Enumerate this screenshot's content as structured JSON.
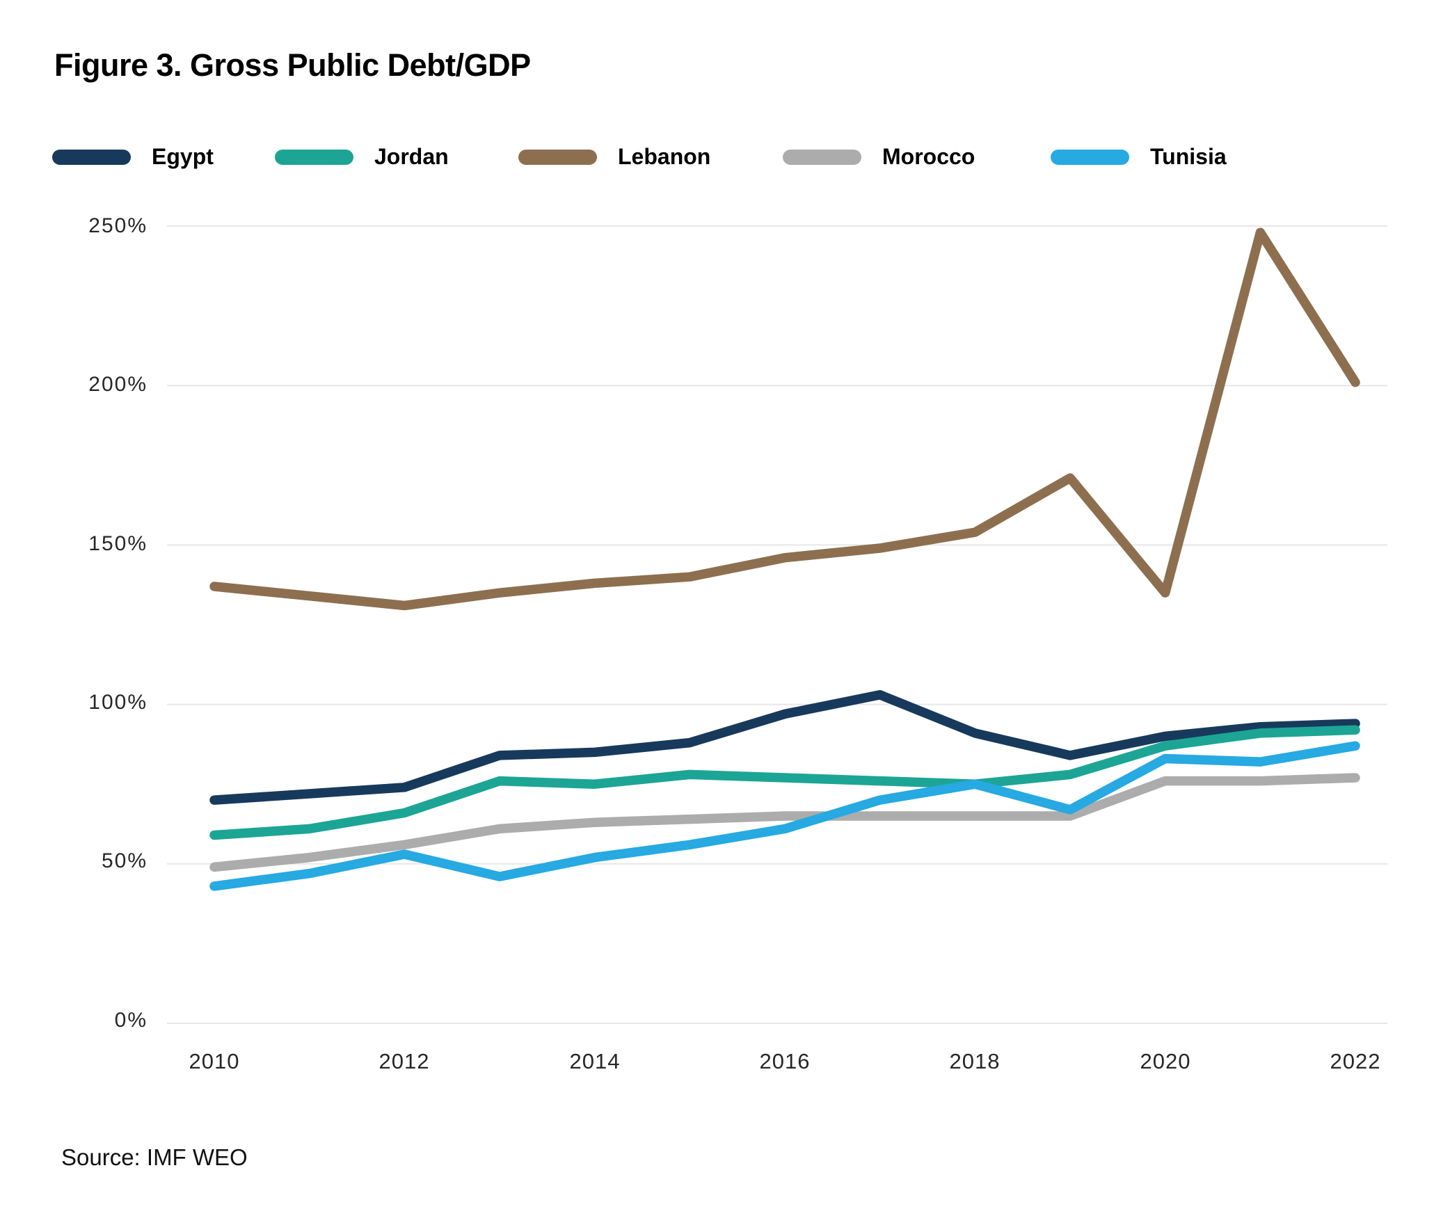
{
  "title": "Figure 3. Gross Public Debt/GDP",
  "source": "Source: IMF WEO",
  "chart_data": {
    "type": "line",
    "x": [
      2010,
      2011,
      2012,
      2013,
      2014,
      2015,
      2016,
      2017,
      2018,
      2019,
      2020,
      2021,
      2022
    ],
    "x_ticks": [
      "2010",
      "2012",
      "2014",
      "2016",
      "2018",
      "2020",
      "2022"
    ],
    "y_ticks": [
      "250%",
      "200%",
      "150%",
      "100%",
      "50%",
      "0%"
    ],
    "y_tick_values": [
      250,
      200,
      150,
      100,
      50,
      0
    ],
    "ylim": [
      0,
      260
    ],
    "xlabel": "",
    "ylabel": "",
    "grid": "horizontal",
    "legend_position": "top",
    "gridline_color": "#e7e7e7",
    "series": [
      {
        "name": "Egypt",
        "color": "#173A5C",
        "values": [
          70,
          72,
          74,
          84,
          85,
          88,
          97,
          103,
          91,
          84,
          90,
          93,
          94
        ]
      },
      {
        "name": "Jordan",
        "color": "#1CA595",
        "values": [
          59,
          61,
          66,
          76,
          75,
          78,
          77,
          76,
          75,
          78,
          87,
          91,
          92
        ]
      },
      {
        "name": "Lebanon",
        "color": "#8D6F4F",
        "values": [
          137,
          134,
          131,
          135,
          138,
          140,
          146,
          149,
          154,
          171,
          135,
          248,
          201
        ]
      },
      {
        "name": "Morocco",
        "color": "#ACACAC",
        "values": [
          49,
          52,
          56,
          61,
          63,
          64,
          65,
          65,
          65,
          65,
          76,
          76,
          77
        ]
      },
      {
        "name": "Tunisia",
        "color": "#27A9E1",
        "values": [
          43,
          47,
          53,
          46,
          52,
          56,
          61,
          70,
          75,
          67,
          83,
          82,
          87
        ]
      }
    ]
  }
}
